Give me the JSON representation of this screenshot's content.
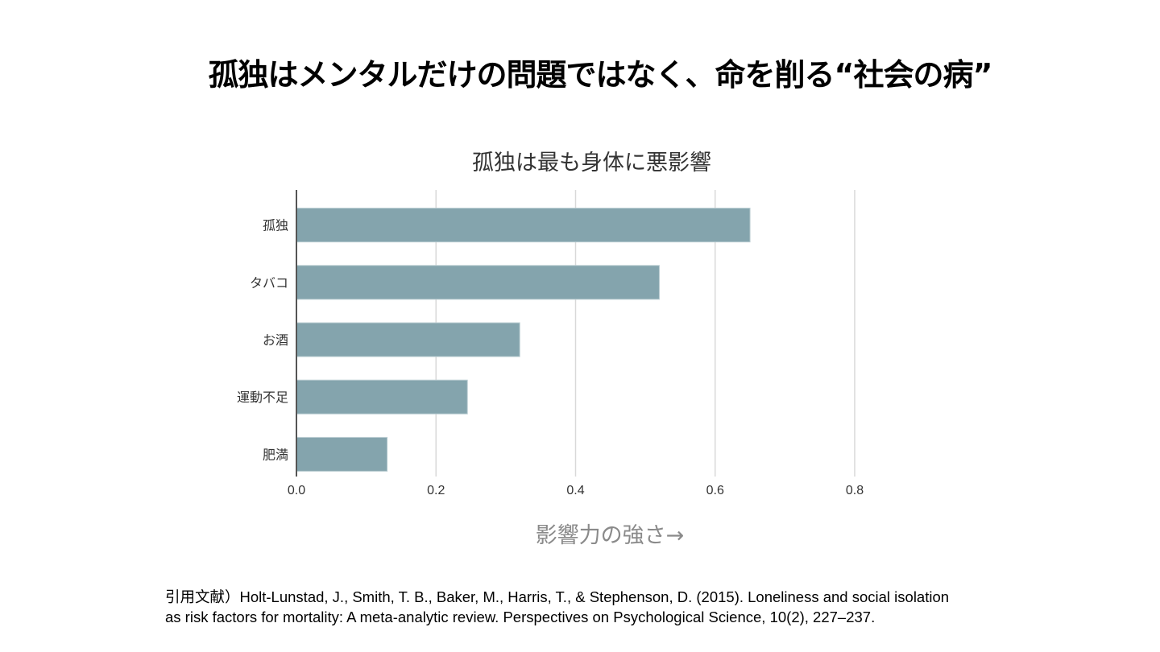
{
  "slide": {
    "title": "孤独はメンタルだけの問題ではなく、命を削る“社会の病”"
  },
  "chart_data": {
    "type": "bar",
    "orientation": "horizontal",
    "title": "孤独は最も身体に悪影響",
    "categories": [
      "孤独",
      "タバコ",
      "お酒",
      "運動不足",
      "肥満"
    ],
    "values": [
      0.65,
      0.52,
      0.32,
      0.245,
      0.13
    ],
    "xlabel": "影響力の強さ→",
    "ylabel": "",
    "xlim": [
      0,
      0.8
    ],
    "xticks": [
      0,
      0.2,
      0.4,
      0.6,
      0.8
    ],
    "xtick_labels": [
      "0.0",
      "0.2",
      "0.4",
      "0.6",
      "0.8"
    ],
    "grid": true,
    "bar_color": "#84a4ad",
    "grid_color": "#d9d9d9",
    "axis_color": "#555555"
  },
  "citation": {
    "line1": "引用文献）Holt-Lunstad, J., Smith, T. B., Baker, M., Harris, T., & Stephenson, D. (2015). Loneliness and social isolation",
    "line2": "as risk factors for mortality: A meta-analytic review. Perspectives on Psychological Science, 10(2), 227–237."
  }
}
